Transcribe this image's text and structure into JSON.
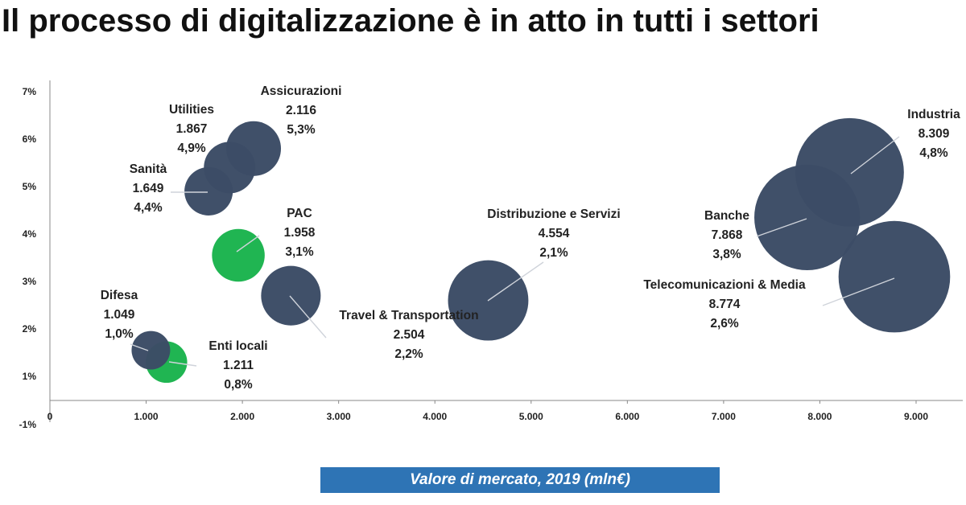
{
  "title": "Il processo di digitalizzazione è in atto in tutti i settori",
  "chart_data": {
    "type": "scatter",
    "variant": "bubble",
    "xlabel": "Valore di mercato, 2019 (mln€)",
    "ylabel": "",
    "xlim": [
      0,
      9000
    ],
    "ylim": [
      -1,
      7
    ],
    "x_ticks": [
      "0",
      "1.000",
      "2.000",
      "3.000",
      "4.000",
      "5.000",
      "6.000",
      "7.000",
      "8.000",
      "9.000"
    ],
    "y_ticks": [
      "-1%",
      "1%",
      "2%",
      "3%",
      "4%",
      "5%",
      "6%",
      "7%"
    ],
    "bubble_size_measure": "market value",
    "colors": {
      "default": "#3c4c66",
      "highlight": "#1cb44f"
    },
    "points": [
      {
        "name": "Assicurazioni",
        "value_label": "2.116",
        "growth_label": "5,3%",
        "x": 2116,
        "y": 5.8,
        "size": 2116,
        "color": "#3c4c66"
      },
      {
        "name": "Utilities",
        "value_label": "1.867",
        "growth_label": "4,9%",
        "x": 1867,
        "y": 5.4,
        "size": 1867,
        "color": "#3c4c66"
      },
      {
        "name": "Sanità",
        "value_label": "1.649",
        "growth_label": "4,4%",
        "x": 1649,
        "y": 4.9,
        "size": 1649,
        "color": "#3c4c66"
      },
      {
        "name": "PAC",
        "value_label": "1.958",
        "growth_label": "3,1%",
        "x": 1958,
        "y": 3.55,
        "size": 1958,
        "color": "#1cb44f"
      },
      {
        "name": "Difesa",
        "value_label": "1.049",
        "growth_label": "1,0%",
        "x": 1049,
        "y": 1.55,
        "size": 1049,
        "color": "#3c4c66"
      },
      {
        "name": "Enti locali",
        "value_label": "1.211",
        "growth_label": "0,8%",
        "x": 1211,
        "y": 1.3,
        "size": 1211,
        "color": "#1cb44f"
      },
      {
        "name": "Travel & Transportation",
        "value_label": "2.504",
        "growth_label": "2,2%",
        "x": 2504,
        "y": 2.7,
        "size": 2504,
        "color": "#3c4c66"
      },
      {
        "name": "Distribuzione e Servizi",
        "value_label": "4.554",
        "growth_label": "2,1%",
        "x": 4554,
        "y": 2.6,
        "size": 4554,
        "color": "#3c4c66"
      },
      {
        "name": "Industria",
        "value_label": "8.309",
        "growth_label": "4,8%",
        "x": 8309,
        "y": 5.3,
        "size": 8309,
        "color": "#3c4c66"
      },
      {
        "name": "Banche",
        "value_label": "7.868",
        "growth_label": "3,8%",
        "x": 7868,
        "y": 4.35,
        "size": 7868,
        "color": "#3c4c66"
      },
      {
        "name": "Telecomunicazioni & Media",
        "value_label": "8.774",
        "growth_label": "2,6%",
        "x": 8774,
        "y": 3.1,
        "size": 8774,
        "color": "#3c4c66"
      }
    ]
  }
}
